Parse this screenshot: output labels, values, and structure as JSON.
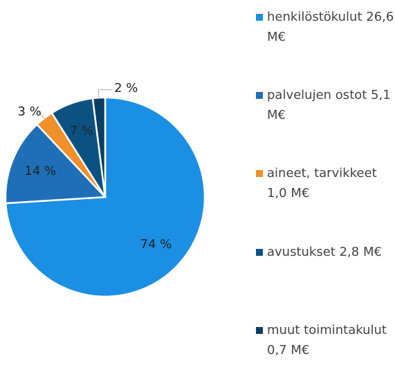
{
  "chart_data": {
    "type": "pie",
    "series": [
      {
        "name": "henkilöstökulut 26,6 M€",
        "color": "#1a8fe3",
        "values": [
          74
        ],
        "value_labels": [
          "74 %"
        ]
      },
      {
        "name": "palvelujen ostot 5,1 M€",
        "color": "#1f6fb8",
        "values": [
          14
        ],
        "value_labels": [
          "14 %"
        ]
      },
      {
        "name": "aineet, tarvikkeet 1,0 M€",
        "color": "#f0902a",
        "values": [
          3
        ],
        "value_labels": [
          "3 %"
        ]
      },
      {
        "name": "avustukset 2,8 M€",
        "color": "#0b5283",
        "values": [
          7
        ],
        "value_labels": [
          "7 %"
        ]
      },
      {
        "name": "muut toimintakulut 0,7 M€",
        "color": "#0c3f66",
        "values": [
          2
        ],
        "value_labels": [
          "2 %"
        ]
      }
    ]
  }
}
